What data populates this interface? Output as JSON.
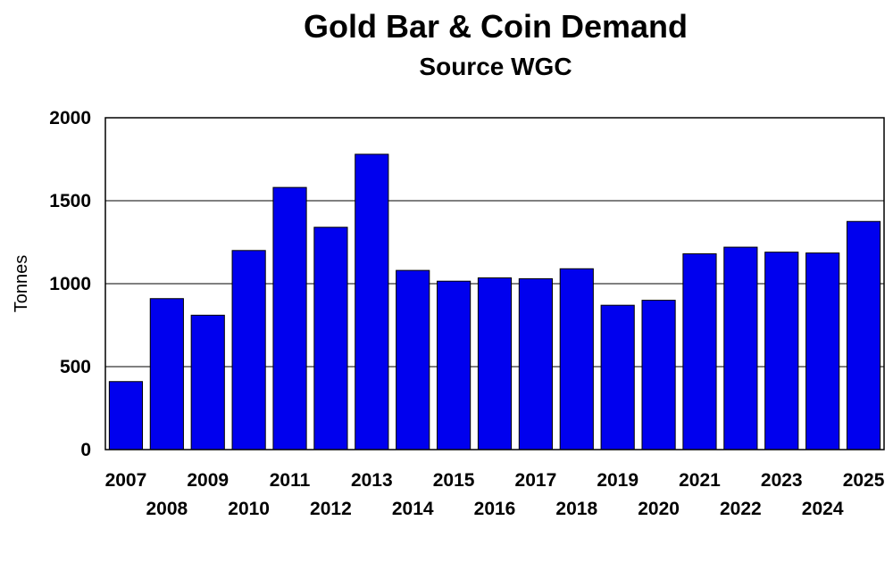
{
  "chart_data": {
    "type": "bar",
    "title": "Gold Bar & Coin Demand",
    "subtitle": "Source WGC",
    "xlabel": "",
    "ylabel": "Tonnes",
    "ylim": [
      0,
      2000
    ],
    "yticks": [
      0,
      500,
      1000,
      1500,
      2000
    ],
    "grid": true,
    "legend": "none",
    "bar_color": "#0000ee",
    "categories": [
      "2007",
      "2008",
      "2009",
      "2010",
      "2011",
      "2012",
      "2013",
      "2014",
      "2015",
      "2016",
      "2017",
      "2018",
      "2019",
      "2020",
      "2021",
      "2022",
      "2023",
      "2024",
      "2025"
    ],
    "values": [
      410,
      910,
      810,
      1200,
      1580,
      1340,
      1780,
      1080,
      1015,
      1035,
      1030,
      1090,
      870,
      900,
      1180,
      1220,
      1190,
      1185,
      1375
    ]
  }
}
